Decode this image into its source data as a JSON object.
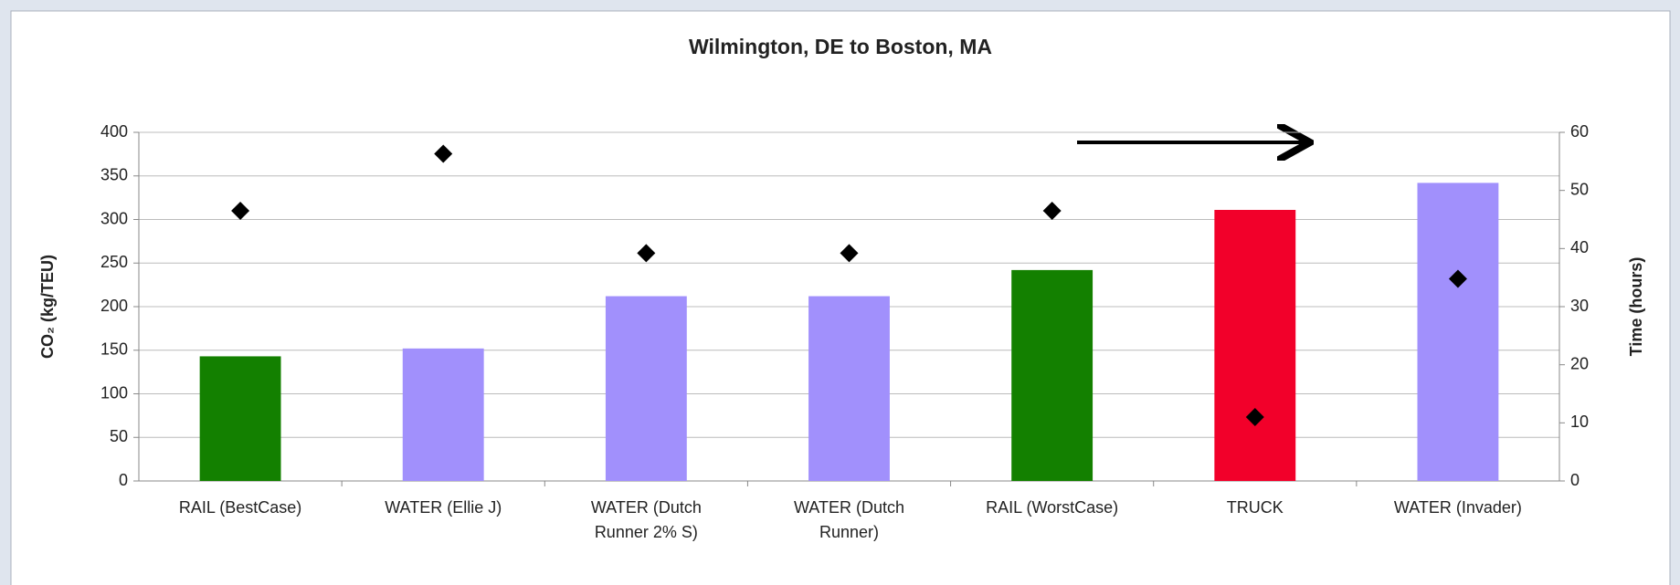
{
  "chart_data": {
    "type": "bar",
    "title": "Wilmington, DE to Boston, MA",
    "y_label": "CO₂ (kg/TEU)",
    "y2_label": "Time (hours)",
    "categories": [
      "RAIL (BestCase)",
      "WATER (Ellie J)",
      "WATER (Dutch Runner 2% S)",
      "WATER (Dutch Runner)",
      "RAIL (WorstCase)",
      "TRUCK",
      "WATER (Invader)"
    ],
    "series": [
      {
        "values": [
          143,
          152,
          212,
          212,
          242,
          311,
          342
        ],
        "colors": [
          "#138000",
          "#a190fc",
          "#a190fc",
          "#a190fc",
          "#138000",
          "#f2002a",
          "#a190fc"
        ]
      },
      {
        "type": "scatter",
        "axis": "y2",
        "color": "#000000",
        "values": [
          46.5,
          56.3,
          39.2,
          39.2,
          46.5,
          11,
          34.8
        ]
      }
    ],
    "ylim": [
      0,
      400
    ],
    "yticks": [
      0,
      50,
      100,
      150,
      200,
      250,
      300,
      350,
      400
    ],
    "y2lim": [
      0,
      60
    ],
    "y2ticks": [
      0,
      10,
      20,
      30,
      40,
      50,
      60
    ],
    "grid": true
  }
}
